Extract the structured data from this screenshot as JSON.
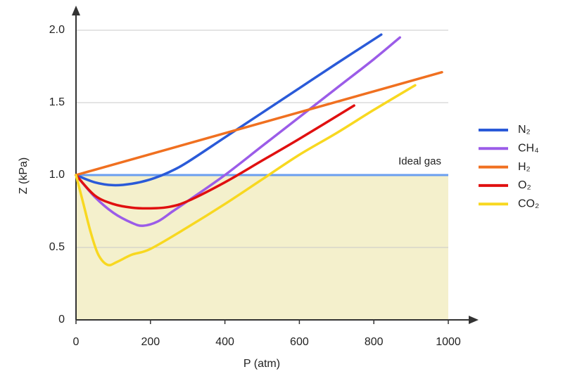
{
  "chart_data": {
    "type": "line",
    "x_label": "P (atm)",
    "y_label": "Z (kPa)",
    "xlim": [
      0,
      1000
    ],
    "ylim": [
      0,
      2
    ],
    "xticks": [
      0,
      200,
      400,
      600,
      800,
      1000
    ],
    "yticks": [
      0,
      {
        "value": 0.5,
        "label": "0.5"
      },
      {
        "value": 1,
        "label": "1.0"
      },
      {
        "value": 1.5,
        "label": "1.5"
      },
      {
        "value": 2,
        "label": "2.0"
      }
    ],
    "grid": true,
    "legend": "right",
    "reference_line": {
      "value": 1,
      "label": "Ideal gas",
      "color": "#6a9ef0",
      "shade": "#f4f0cc"
    },
    "series": [
      {
        "name": "N₂",
        "color": "#2a5ad8",
        "x": [
          0,
          50,
          100,
          150,
          200,
          250,
          300,
          400,
          500,
          600,
          700,
          820
        ],
        "values": [
          1.0,
          0.95,
          0.93,
          0.94,
          0.97,
          1.02,
          1.09,
          1.26,
          1.43,
          1.6,
          1.77,
          1.97
        ]
      },
      {
        "name": "CH₄",
        "color": "#9b5ce8",
        "x": [
          0,
          50,
          100,
          150,
          180,
          220,
          260,
          300,
          400,
          500,
          600,
          700,
          800,
          870
        ],
        "values": [
          1.0,
          0.85,
          0.74,
          0.67,
          0.65,
          0.68,
          0.75,
          0.82,
          1.0,
          1.2,
          1.4,
          1.6,
          1.8,
          1.95
        ]
      },
      {
        "name": "H₂",
        "color": "#f07020",
        "x": [
          0,
          983
        ],
        "values": [
          1.0,
          1.71
        ]
      },
      {
        "name": "O₂",
        "color": "#e01010",
        "x": [
          0,
          50,
          100,
          150,
          200,
          250,
          300,
          400,
          500,
          600,
          747
        ],
        "values": [
          1.0,
          0.86,
          0.8,
          0.775,
          0.77,
          0.78,
          0.82,
          0.95,
          1.1,
          1.25,
          1.48
        ]
      },
      {
        "name": "CO₂",
        "color": "#f8d820",
        "x": [
          0,
          20,
          40,
          60,
          85,
          110,
          150,
          200,
          300,
          400,
          500,
          600,
          700,
          800,
          911
        ],
        "values": [
          1.0,
          0.8,
          0.6,
          0.45,
          0.38,
          0.4,
          0.45,
          0.49,
          0.64,
          0.8,
          0.97,
          1.14,
          1.29,
          1.45,
          1.62
        ]
      }
    ]
  }
}
